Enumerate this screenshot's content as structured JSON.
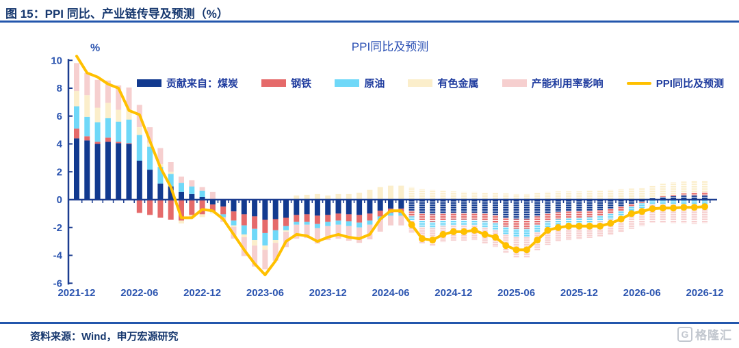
{
  "figure": {
    "header_title": "图 15：PPI 同比、产业链传导及预测（%）",
    "source_note": "资料来源：Wind，申万宏源研究",
    "watermark": {
      "icon_letter": "G",
      "text": "格隆汇"
    }
  },
  "chart_data": {
    "type": "bar",
    "subtype": "stacked-bar-with-line",
    "title": "PPI同比及预测",
    "y_axis": {
      "unit_label": "%",
      "ticks": [
        10,
        8,
        6,
        4,
        2,
        0,
        -2,
        -4,
        -6
      ],
      "min": -6,
      "max": 10,
      "grid": false
    },
    "x_axis": {
      "start": "2021-12",
      "end": "2026-12",
      "months_count": 61,
      "tick_labels": [
        "2021-12",
        "2022-06",
        "2022-12",
        "2023-06",
        "2023-12",
        "2024-06",
        "2024-12",
        "2025-06",
        "2025-12",
        "2026-06",
        "2026-12"
      ]
    },
    "legend_position": "top",
    "forecast_start_index": 32,
    "series": [
      {
        "name": "贡献来自：煤炭",
        "color": "#123A8F",
        "values": [
          4.4,
          4.25,
          4.0,
          4.15,
          4.05,
          4.0,
          2.8,
          2.15,
          1.15,
          0.95,
          0.55,
          0.4,
          0.2,
          -0.35,
          -0.5,
          -0.85,
          -1.05,
          -1.2,
          -1.45,
          -1.4,
          -1.3,
          -1.1,
          -1.05,
          -1.15,
          -1.1,
          -1.0,
          -1.05,
          -1.1,
          -1.0,
          -0.8,
          -0.65,
          -0.65,
          -0.8,
          -1.0,
          -1.05,
          -1.0,
          -0.95,
          -0.95,
          -0.95,
          -1.0,
          -1.1,
          -1.3,
          -1.4,
          -1.4,
          -1.2,
          -1.0,
          -0.9,
          -0.85,
          -0.85,
          -0.8,
          -0.75,
          -0.65,
          -0.5,
          -0.3,
          -0.15,
          0.1,
          0.2,
          0.25,
          0.3,
          0.3,
          0.3
        ]
      },
      {
        "name": "钢铁",
        "color": "#E56A6A",
        "values": [
          0.7,
          0.3,
          0.15,
          0.3,
          0.1,
          0.05,
          -0.95,
          -1.1,
          -1.3,
          -1.45,
          -1.5,
          -1.1,
          -1.05,
          -0.5,
          -0.55,
          -0.65,
          -0.8,
          -0.9,
          -0.95,
          -0.8,
          -0.6,
          -0.5,
          -0.55,
          -0.6,
          -0.5,
          -0.5,
          -0.5,
          -0.55,
          -0.5,
          -0.4,
          -0.3,
          -0.3,
          -0.4,
          -0.5,
          -0.55,
          -0.5,
          -0.5,
          -0.5,
          -0.5,
          -0.55,
          -0.6,
          -0.65,
          -0.7,
          -0.7,
          -0.6,
          -0.55,
          -0.5,
          -0.5,
          -0.45,
          -0.45,
          -0.4,
          -0.35,
          -0.3,
          -0.2,
          -0.1,
          0.0,
          0.05,
          0.1,
          0.15,
          0.2,
          0.25
        ]
      },
      {
        "name": "原油",
        "color": "#6FD8F8",
        "values": [
          1.6,
          1.4,
          1.4,
          1.4,
          1.45,
          1.7,
          1.85,
          1.65,
          1.2,
          0.9,
          0.65,
          0.55,
          0.45,
          -0.05,
          -0.2,
          -0.35,
          -0.65,
          -0.8,
          -0.9,
          -0.7,
          -0.3,
          -0.2,
          -0.2,
          -0.3,
          -0.3,
          -0.3,
          -0.35,
          -0.35,
          -0.3,
          -0.25,
          -0.2,
          -0.2,
          -0.3,
          -0.45,
          -0.45,
          -0.4,
          -0.4,
          -0.4,
          -0.4,
          -0.45,
          -0.5,
          -0.55,
          -0.6,
          -0.6,
          -0.55,
          -0.5,
          -0.45,
          -0.45,
          -0.45,
          -0.4,
          -0.4,
          -0.4,
          -0.35,
          -0.35,
          -0.35,
          -0.35,
          -0.3,
          -0.3,
          -0.3,
          -0.3,
          -0.3
        ]
      },
      {
        "name": "有色金属",
        "color": "#FBEECB",
        "values": [
          1.1,
          1.55,
          1.05,
          1.1,
          0.85,
          0.7,
          0.55,
          0.3,
          0.2,
          0.15,
          -0.2,
          -0.25,
          -0.2,
          -0.1,
          0.0,
          -0.1,
          -0.2,
          -0.4,
          -0.3,
          -0.2,
          -0.1,
          0.3,
          0.35,
          0.4,
          0.3,
          0.4,
          0.4,
          0.5,
          0.7,
          0.9,
          1.0,
          1.0,
          0.9,
          0.75,
          0.7,
          0.65,
          0.6,
          0.55,
          0.55,
          0.5,
          0.5,
          0.45,
          0.4,
          0.4,
          0.5,
          0.55,
          0.6,
          0.6,
          0.6,
          0.65,
          0.65,
          0.7,
          0.75,
          0.8,
          0.85,
          0.9,
          0.9,
          0.9,
          0.85,
          0.85,
          0.8
        ]
      },
      {
        "name": "产能利用率影响",
        "color": "#F6CFCF",
        "values": [
          2.0,
          1.6,
          2.0,
          1.6,
          1.75,
          1.6,
          1.6,
          1.1,
          1.15,
          0.7,
          0.45,
          0.45,
          0.25,
          0.55,
          -0.35,
          -0.85,
          -1.35,
          -1.5,
          -1.4,
          -1.3,
          -1.1,
          -1.0,
          -0.95,
          -1.1,
          -1.0,
          -1.0,
          -1.05,
          -1.1,
          -1.05,
          -0.85,
          -0.7,
          -0.7,
          -0.9,
          -1.2,
          -1.25,
          -1.15,
          -1.1,
          -1.1,
          -1.05,
          -1.15,
          -1.2,
          -1.35,
          -1.45,
          -1.45,
          -1.3,
          -1.2,
          -1.15,
          -1.1,
          -1.1,
          -1.1,
          -1.1,
          -1.15,
          -1.2,
          -1.25,
          -1.3,
          -1.3,
          -1.35,
          -1.4,
          -1.4,
          -1.45,
          -1.4
        ]
      }
    ],
    "line": {
      "name": "PPI同比及预测",
      "color": "#FFC000",
      "marker_start_index": 32,
      "values": [
        10.3,
        9.1,
        8.8,
        8.3,
        8.0,
        6.4,
        6.1,
        4.2,
        2.3,
        0.9,
        -1.3,
        -1.3,
        -0.7,
        -0.8,
        -1.4,
        -2.5,
        -3.6,
        -4.6,
        -5.4,
        -4.4,
        -3.0,
        -2.5,
        -2.6,
        -3.0,
        -2.7,
        -2.5,
        -2.7,
        -2.8,
        -2.5,
        -1.4,
        -0.8,
        -0.8,
        -1.8,
        -2.8,
        -2.9,
        -2.5,
        -2.3,
        -2.3,
        -2.2,
        -2.5,
        -2.7,
        -3.3,
        -3.6,
        -3.6,
        -2.9,
        -2.2,
        -2.0,
        -1.9,
        -1.9,
        -1.9,
        -1.9,
        -1.7,
        -1.4,
        -1.0,
        -0.85,
        -0.65,
        -0.6,
        -0.6,
        -0.55,
        -0.55,
        -0.5
      ]
    },
    "axis_color": "#1B3C8F"
  }
}
